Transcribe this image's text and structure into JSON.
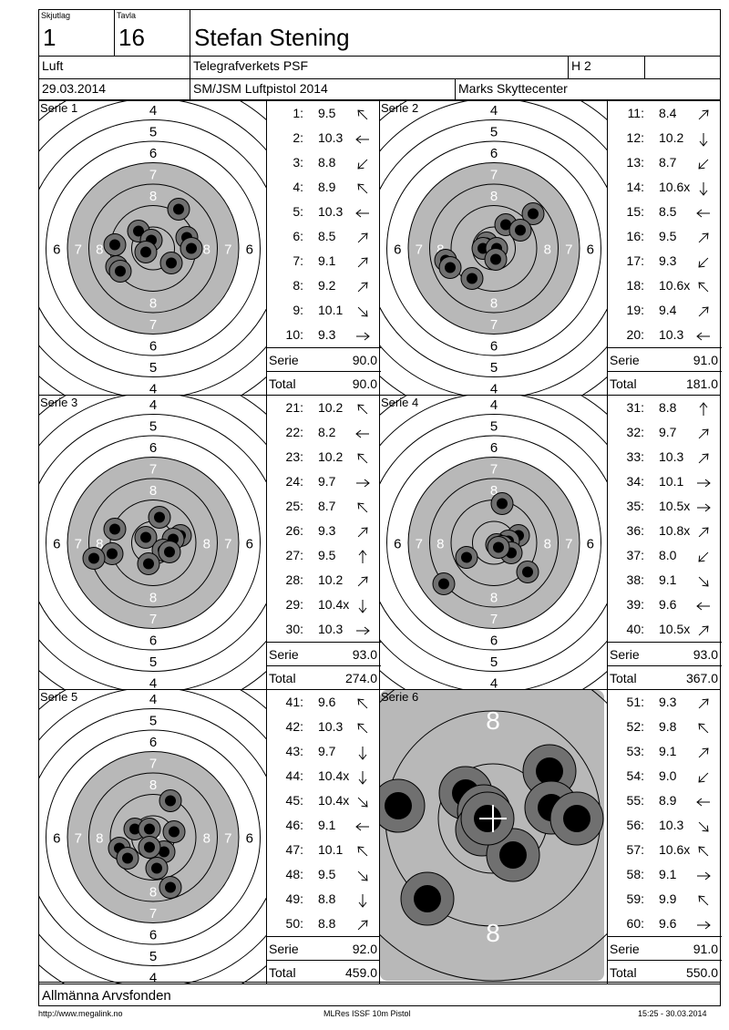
{
  "header": {
    "skjutlag_label": "Skjutlag",
    "skjutlag_value": "1",
    "tavla_label": "Tavla",
    "tavla_value": "16",
    "shooter_name": "Stefan Stening",
    "discipline": "Luft",
    "club": "Telegrafverkets PSF",
    "class": "H 2",
    "date": "29.03.2014",
    "competition": "SM/JSM Luftpistol 2014",
    "venue": "Marks Skyttecenter"
  },
  "series": [
    {
      "title": "Serie 1",
      "serie_label": "Serie",
      "serie_value": "90.0",
      "total_label": "Total",
      "total_value": "90.0",
      "shots": [
        {
          "no": "1:",
          "score": "9.5",
          "dir": "nw"
        },
        {
          "no": "2:",
          "score": "10.3",
          "dir": "w"
        },
        {
          "no": "3:",
          "score": "8.8",
          "dir": "sw"
        },
        {
          "no": "4:",
          "score": "8.9",
          "dir": "nw"
        },
        {
          "no": "5:",
          "score": "10.3",
          "dir": "w"
        },
        {
          "no": "6:",
          "score": "8.5",
          "dir": "ne"
        },
        {
          "no": "7:",
          "score": "9.1",
          "dir": "ne"
        },
        {
          "no": "8:",
          "score": "9.2",
          "dir": "ne"
        },
        {
          "no": "9:",
          "score": "10.1",
          "dir": "se"
        },
        {
          "no": "10:",
          "score": "9.3",
          "dir": "e"
        }
      ]
    },
    {
      "title": "Serie 2",
      "serie_label": "Serie",
      "serie_value": "91.0",
      "total_label": "Total",
      "total_value": "181.0",
      "shots": [
        {
          "no": "11:",
          "score": "8.4",
          "dir": "ne"
        },
        {
          "no": "12:",
          "score": "10.2",
          "dir": "s"
        },
        {
          "no": "13:",
          "score": "8.7",
          "dir": "sw"
        },
        {
          "no": "14:",
          "score": "10.6x",
          "dir": "s"
        },
        {
          "no": "15:",
          "score": "8.5",
          "dir": "w"
        },
        {
          "no": "16:",
          "score": "9.5",
          "dir": "ne"
        },
        {
          "no": "17:",
          "score": "9.3",
          "dir": "sw"
        },
        {
          "no": "18:",
          "score": "10.6x",
          "dir": "nw"
        },
        {
          "no": "19:",
          "score": "9.4",
          "dir": "ne"
        },
        {
          "no": "20:",
          "score": "10.3",
          "dir": "w"
        }
      ]
    },
    {
      "title": "Serie 3",
      "serie_label": "Serie",
      "serie_value": "93.0",
      "total_label": "Total",
      "total_value": "274.0",
      "shots": [
        {
          "no": "21:",
          "score": "10.2",
          "dir": "nw"
        },
        {
          "no": "22:",
          "score": "8.2",
          "dir": "w"
        },
        {
          "no": "23:",
          "score": "10.2",
          "dir": "nw"
        },
        {
          "no": "24:",
          "score": "9.7",
          "dir": "e"
        },
        {
          "no": "25:",
          "score": "8.7",
          "dir": "nw"
        },
        {
          "no": "26:",
          "score": "9.3",
          "dir": "ne"
        },
        {
          "no": "27:",
          "score": "9.5",
          "dir": "n"
        },
        {
          "no": "28:",
          "score": "10.2",
          "dir": "ne"
        },
        {
          "no": "29:",
          "score": "10.4x",
          "dir": "s"
        },
        {
          "no": "30:",
          "score": "10.3",
          "dir": "e"
        }
      ]
    },
    {
      "title": "Serie 4",
      "serie_label": "Serie",
      "serie_value": "93.0",
      "total_label": "Total",
      "total_value": "367.0",
      "shots": [
        {
          "no": "31:",
          "score": "8.8",
          "dir": "n"
        },
        {
          "no": "32:",
          "score": "9.7",
          "dir": "ne"
        },
        {
          "no": "33:",
          "score": "10.3",
          "dir": "ne"
        },
        {
          "no": "34:",
          "score": "10.1",
          "dir": "e"
        },
        {
          "no": "35:",
          "score": "10.5x",
          "dir": "e"
        },
        {
          "no": "36:",
          "score": "10.8x",
          "dir": "ne"
        },
        {
          "no": "37:",
          "score": "8.0",
          "dir": "sw"
        },
        {
          "no": "38:",
          "score": "9.1",
          "dir": "se"
        },
        {
          "no": "39:",
          "score": "9.6",
          "dir": "w"
        },
        {
          "no": "40:",
          "score": "10.5x",
          "dir": "ne"
        }
      ]
    },
    {
      "title": "Serie 5",
      "serie_label": "Serie",
      "serie_value": "92.0",
      "total_label": "Total",
      "total_value": "459.0",
      "shots": [
        {
          "no": "41:",
          "score": "9.6",
          "dir": "nw"
        },
        {
          "no": "42:",
          "score": "10.3",
          "dir": "nw"
        },
        {
          "no": "43:",
          "score": "9.7",
          "dir": "s"
        },
        {
          "no": "44:",
          "score": "10.4x",
          "dir": "s"
        },
        {
          "no": "45:",
          "score": "10.4x",
          "dir": "se"
        },
        {
          "no": "46:",
          "score": "9.1",
          "dir": "w"
        },
        {
          "no": "47:",
          "score": "10.1",
          "dir": "nw"
        },
        {
          "no": "48:",
          "score": "9.5",
          "dir": "se"
        },
        {
          "no": "49:",
          "score": "8.8",
          "dir": "s"
        },
        {
          "no": "50:",
          "score": "8.8",
          "dir": "ne"
        }
      ]
    },
    {
      "title": "Serie 6",
      "serie_label": "Serie",
      "serie_value": "91.0",
      "total_label": "Total",
      "total_value": "550.0",
      "shots": [
        {
          "no": "51:",
          "score": "9.3",
          "dir": "ne"
        },
        {
          "no": "52:",
          "score": "9.8",
          "dir": "nw"
        },
        {
          "no": "53:",
          "score": "9.1",
          "dir": "ne"
        },
        {
          "no": "54:",
          "score": "9.0",
          "dir": "sw"
        },
        {
          "no": "55:",
          "score": "8.9",
          "dir": "w"
        },
        {
          "no": "56:",
          "score": "10.3",
          "dir": "se"
        },
        {
          "no": "57:",
          "score": "10.6x",
          "dir": "nw"
        },
        {
          "no": "58:",
          "score": "9.1",
          "dir": "e"
        },
        {
          "no": "59:",
          "score": "9.9",
          "dir": "nw"
        },
        {
          "no": "60:",
          "score": "9.6",
          "dir": "e"
        }
      ]
    }
  ],
  "target_ring_labels": {
    "r4": "4",
    "r5": "5",
    "r6": "6",
    "r7": "7",
    "r8": "8"
  },
  "sponsor": "Allmänna Arvsfonden",
  "footer": {
    "left": "http://www.megalink.no",
    "center": "MLRes ISSF 10m Pistol",
    "right": "15:25 - 30.03.2014"
  },
  "colors": {
    "black_area": "#b8b8b8",
    "paper": "#ffffff",
    "hole_outer": "#707070",
    "hole_inner": "#000000"
  }
}
